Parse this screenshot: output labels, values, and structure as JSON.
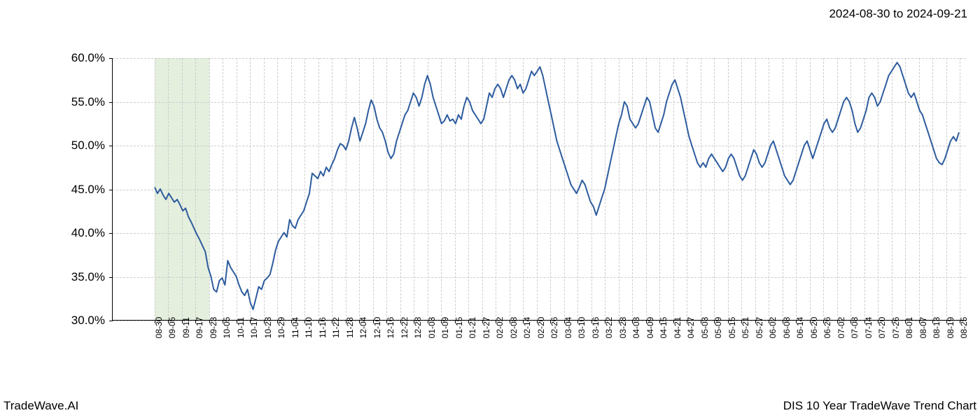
{
  "header": {
    "date_range": "2024-08-30 to 2024-09-21"
  },
  "footer": {
    "brand": "TradeWave.AI",
    "chart_title": "DIS 10 Year TradeWave Trend Chart"
  },
  "chart": {
    "type": "line",
    "line_color": "#2d5c9e",
    "line_width": 2,
    "background_color": "#ffffff",
    "grid_color": "#cccccc",
    "grid_style": "dashed",
    "highlight_band": {
      "color": "#d8e8d0",
      "opacity": 0.7,
      "x_start_index": 0,
      "x_end_index": 4
    },
    "y_axis": {
      "min": 30.0,
      "max": 60.0,
      "ticks": [
        30.0,
        35.0,
        40.0,
        45.0,
        50.0,
        55.0,
        60.0
      ],
      "tick_labels": [
        "30.0%",
        "35.0%",
        "40.0%",
        "45.0%",
        "50.0%",
        "55.0%",
        "60.0%"
      ],
      "label_fontsize": 17
    },
    "x_axis": {
      "tick_labels": [
        "08-30",
        "09-05",
        "09-11",
        "09-17",
        "09-23",
        "10-05",
        "10-11",
        "10-17",
        "10-23",
        "10-29",
        "11-04",
        "11-10",
        "11-16",
        "11-22",
        "11-28",
        "12-04",
        "12-10",
        "12-16",
        "12-22",
        "12-28",
        "01-03",
        "01-09",
        "01-15",
        "01-21",
        "01-27",
        "02-02",
        "02-08",
        "02-14",
        "02-20",
        "02-26",
        "03-04",
        "03-10",
        "03-16",
        "03-22",
        "03-28",
        "04-03",
        "04-09",
        "04-15",
        "04-21",
        "04-27",
        "05-03",
        "05-09",
        "05-15",
        "05-21",
        "05-27",
        "06-02",
        "06-08",
        "06-14",
        "06-20",
        "06-26",
        "07-02",
        "07-08",
        "07-14",
        "07-20",
        "07-26",
        "08-01",
        "08-07",
        "08-13",
        "08-19",
        "08-25"
      ],
      "label_fontsize": 12,
      "label_rotation": -90
    },
    "series": {
      "values": [
        45.2,
        44.5,
        45.0,
        44.3,
        43.8,
        44.5,
        44.0,
        43.5,
        43.8,
        43.2,
        42.5,
        42.8,
        41.8,
        41.2,
        40.5,
        39.8,
        39.2,
        38.5,
        37.8,
        36.0,
        35.0,
        33.5,
        33.2,
        34.5,
        34.8,
        34.0,
        36.8,
        36.0,
        35.5,
        35.0,
        34.0,
        33.2,
        32.8,
        33.5,
        32.0,
        31.2,
        32.5,
        33.8,
        33.5,
        34.5,
        34.8,
        35.2,
        36.5,
        38.0,
        39.0,
        39.5,
        40.0,
        39.5,
        41.5,
        40.8,
        40.5,
        41.5,
        42.0,
        42.5,
        43.5,
        44.5,
        46.8,
        46.5,
        46.2,
        47.0,
        46.5,
        47.5,
        47.0,
        47.8,
        48.5,
        49.5,
        50.2,
        50.0,
        49.5,
        50.5,
        52.0,
        53.2,
        52.0,
        50.5,
        51.5,
        52.5,
        54.0,
        55.2,
        54.5,
        53.0,
        52.0,
        51.5,
        50.5,
        49.2,
        48.5,
        49.0,
        50.5,
        51.5,
        52.5,
        53.5,
        54.0,
        55.0,
        56.0,
        55.5,
        54.5,
        55.5,
        57.0,
        58.0,
        57.0,
        55.5,
        54.5,
        53.5,
        52.5,
        52.8,
        53.5,
        52.8,
        53.0,
        52.5,
        53.5,
        53.0,
        54.5,
        55.5,
        55.0,
        54.0,
        53.5,
        53.0,
        52.5,
        53.0,
        54.5,
        56.0,
        55.5,
        56.5,
        57.0,
        56.5,
        55.5,
        56.5,
        57.5,
        58.0,
        57.5,
        56.5,
        57.0,
        56.0,
        56.5,
        57.5,
        58.5,
        58.0,
        58.5,
        59.0,
        58.0,
        56.5,
        55.0,
        53.5,
        52.0,
        50.5,
        49.5,
        48.5,
        47.5,
        46.5,
        45.5,
        45.0,
        44.5,
        45.2,
        46.0,
        45.5,
        44.5,
        43.5,
        43.0,
        42.0,
        43.0,
        44.0,
        45.0,
        46.5,
        48.0,
        49.5,
        51.0,
        52.5,
        53.5,
        55.0,
        54.5,
        53.0,
        52.5,
        52.0,
        52.5,
        53.5,
        54.5,
        55.5,
        55.0,
        53.5,
        52.0,
        51.5,
        52.5,
        53.5,
        55.0,
        56.0,
        57.0,
        57.5,
        56.5,
        55.5,
        54.0,
        52.5,
        51.0,
        50.0,
        49.0,
        48.0,
        47.5,
        48.0,
        47.5,
        48.5,
        49.0,
        48.5,
        48.0,
        47.5,
        47.0,
        47.5,
        48.5,
        49.0,
        48.5,
        47.5,
        46.5,
        46.0,
        46.5,
        47.5,
        48.5,
        49.5,
        49.0,
        48.0,
        47.5,
        48.0,
        49.0,
        50.0,
        50.5,
        49.5,
        48.5,
        47.5,
        46.5,
        46.0,
        45.5,
        46.0,
        47.0,
        48.0,
        49.0,
        50.0,
        50.5,
        49.5,
        48.5,
        49.5,
        50.5,
        51.5,
        52.5,
        53.0,
        52.0,
        51.5,
        52.0,
        53.0,
        54.0,
        55.0,
        55.5,
        55.0,
        54.0,
        52.5,
        51.5,
        52.0,
        53.0,
        54.0,
        55.5,
        56.0,
        55.5,
        54.5,
        55.0,
        56.0,
        57.0,
        58.0,
        58.5,
        59.0,
        59.5,
        59.0,
        58.0,
        57.0,
        56.0,
        55.5,
        56.0,
        55.0,
        54.0,
        53.5,
        52.5,
        51.5,
        50.5,
        49.5,
        48.5,
        48.0,
        47.8,
        48.5,
        49.5,
        50.5,
        51.0,
        50.5,
        51.5
      ]
    }
  }
}
